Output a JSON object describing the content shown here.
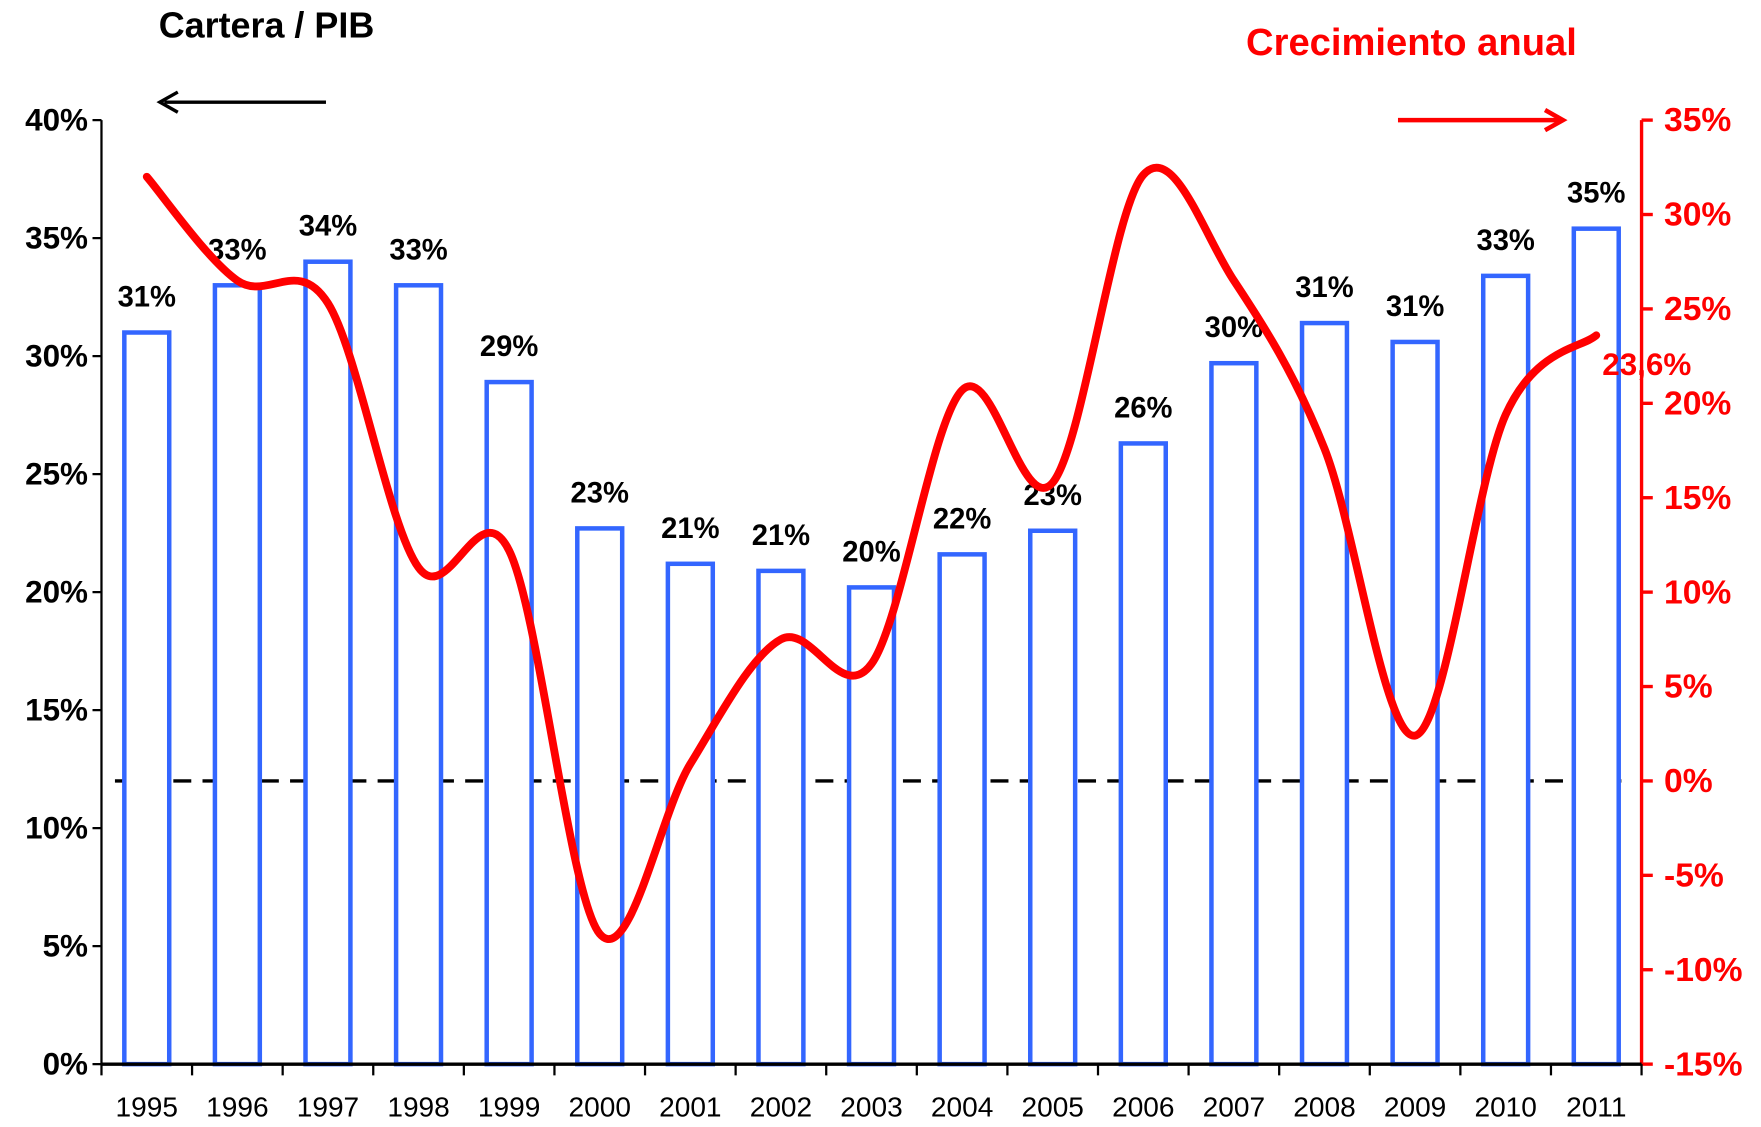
{
  "chart_data": {
    "type": "bar",
    "categories": [
      "1995",
      "1996",
      "1997",
      "1998",
      "1999",
      "2000",
      "2001",
      "2002",
      "2003",
      "2004",
      "2005",
      "2006",
      "2007",
      "2008",
      "2009",
      "2010",
      "2011"
    ],
    "series": [
      {
        "name": "Cartera / PIB",
        "type": "bar",
        "color": "#3366ff",
        "values": [
          31,
          33,
          34,
          33,
          28.9,
          22.7,
          21.2,
          20.9,
          20.2,
          21.6,
          22.6,
          26.3,
          29.7,
          31.4,
          30.6,
          33.4,
          35.4
        ],
        "value_labels": [
          "31%",
          "33%",
          "34%",
          "33%",
          "29%",
          "23%",
          "21%",
          "21%",
          "20%",
          "22%",
          "23%",
          "26%",
          "30%",
          "31%",
          "31%",
          "33%",
          "35%"
        ]
      },
      {
        "name": "Crecimiento anual",
        "type": "line",
        "axis": "y2",
        "color": "#ff0000",
        "values": [
          32.0,
          26.5,
          25.3,
          11.3,
          12.2,
          -8.1,
          0.9,
          7.5,
          6.2,
          20.7,
          15.8,
          32.1,
          26.5,
          17.6,
          2.4,
          19.4,
          23.6
        ],
        "value_labels": [
          null,
          null,
          null,
          null,
          null,
          null,
          null,
          null,
          null,
          null,
          null,
          null,
          null,
          null,
          null,
          null,
          "23,6%"
        ]
      }
    ],
    "ylim": [
      0,
      40
    ],
    "yticks": [
      {
        "value": 0,
        "label": "0%"
      },
      {
        "value": 5,
        "label": "5%"
      },
      {
        "value": 10,
        "label": "10%"
      },
      {
        "value": 15,
        "label": "15%"
      },
      {
        "value": 20,
        "label": "20%"
      },
      {
        "value": 25,
        "label": "25%"
      },
      {
        "value": 30,
        "label": "30%"
      },
      {
        "value": 35,
        "label": "35%"
      },
      {
        "value": 40,
        "label": "40%"
      }
    ],
    "y2lim": [
      -15,
      35
    ],
    "y2ticks": [
      {
        "value": -15,
        "label": "-15%"
      },
      {
        "value": -10,
        "label": "-10%"
      },
      {
        "value": -5,
        "label": "-5%"
      },
      {
        "value": 0,
        "label": "0%"
      },
      {
        "value": 5,
        "label": "5%"
      },
      {
        "value": 10,
        "label": "10%"
      },
      {
        "value": 15,
        "label": "15%"
      },
      {
        "value": 20,
        "label": "20%"
      },
      {
        "value": 25,
        "label": "25%"
      },
      {
        "value": 30,
        "label": "30%"
      },
      {
        "value": 35,
        "label": "35%"
      }
    ]
  }
}
